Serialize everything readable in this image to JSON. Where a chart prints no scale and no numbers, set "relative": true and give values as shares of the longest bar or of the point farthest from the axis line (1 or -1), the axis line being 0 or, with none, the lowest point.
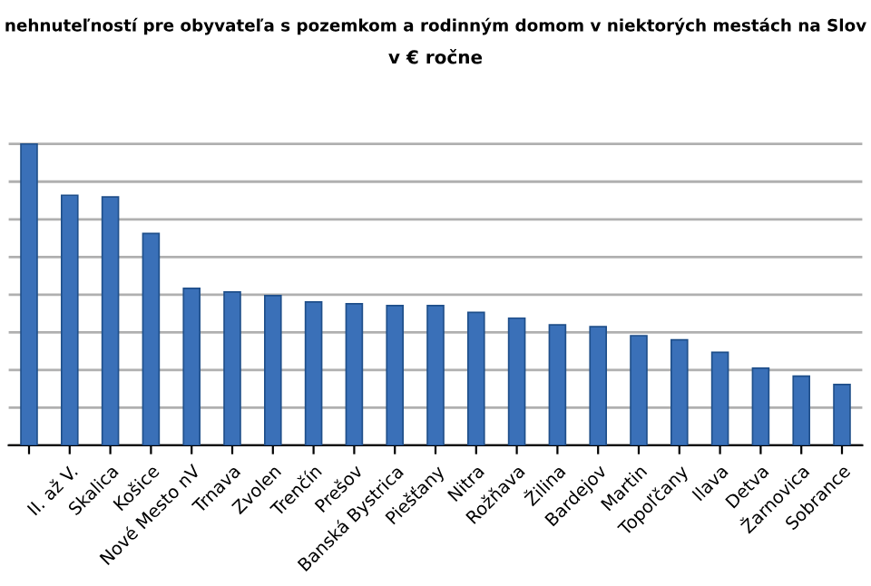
{
  "chart_data": {
    "type": "bar",
    "title": "nehnuteľností pre obyvateľa s pozemkom a rodinným domom v niektorých mestách na Slov",
    "subtitle": "v € ročne",
    "categories": [
      null,
      "II. až V.",
      "Skalica",
      "Košice",
      "Nové Mesto nV",
      "Trnava",
      "Zvolen",
      "Trenčín",
      "Prešov",
      "Banská Bystrica",
      "Piešťany",
      "Nitra",
      "Rožňava",
      "Žilina",
      "Bardejov",
      "Martin",
      "Topoľčany",
      "Ilava",
      "Detva",
      "Žarnovica",
      "Sobrance"
    ],
    "values": [
      1,
      0.83,
      0.824,
      0.703,
      0.521,
      0.509,
      0.497,
      0.476,
      0.47,
      0.464,
      0.464,
      0.441,
      0.422,
      0.4,
      0.394,
      0.364,
      0.35,
      0.309,
      0.256,
      0.23,
      0.202
    ],
    "color": "#3a70b8",
    "relative": true,
    "grid": "y",
    "tick_labels": "x"
  }
}
